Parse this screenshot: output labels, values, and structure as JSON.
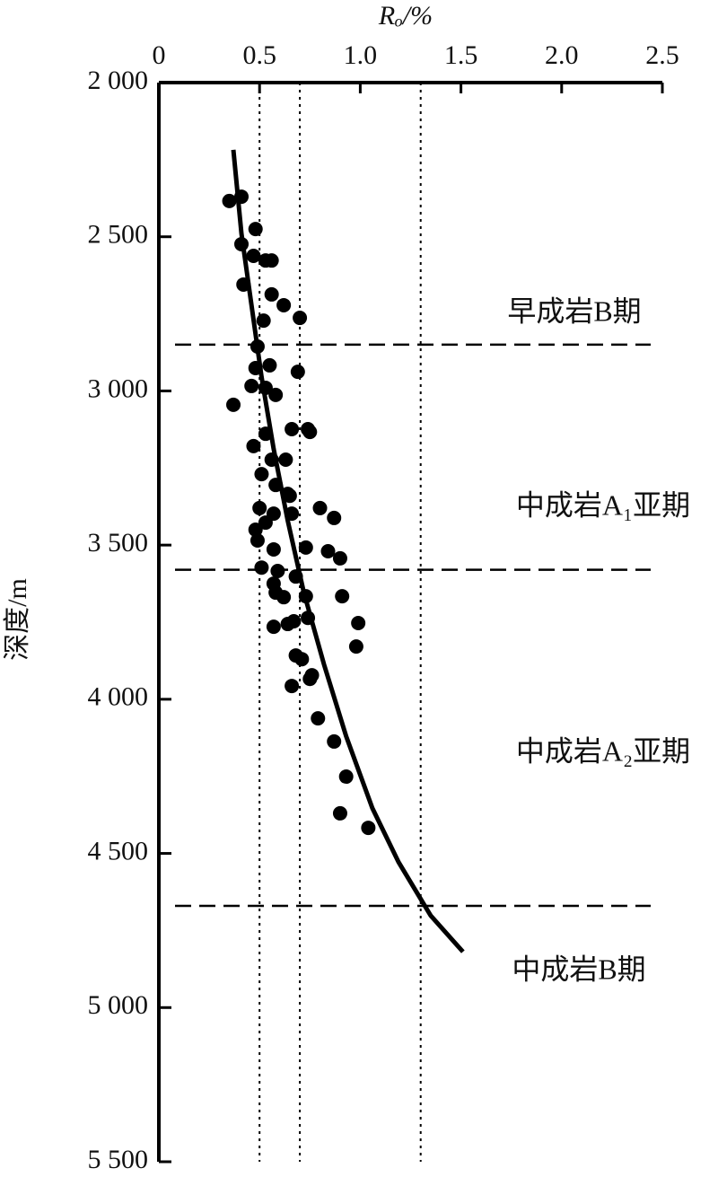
{
  "chart_data": {
    "type": "scatter",
    "x_label": "Rₒ/%",
    "y_label": "深度/m",
    "xlim": [
      0,
      2.5
    ],
    "xticks": [
      0,
      0.5,
      {
        "value": 1,
        "label": "1.0"
      },
      1.5,
      {
        "value": 2,
        "label": "2.0"
      },
      2.5
    ],
    "ylim": [
      2000,
      5500
    ],
    "yticks": [
      {
        "value": 2000,
        "label": "2 000"
      },
      {
        "value": 2500,
        "label": "2 500"
      },
      {
        "value": 3000,
        "label": "3 000"
      },
      {
        "value": 3500,
        "label": "3 500"
      },
      {
        "value": 4000,
        "label": "4 000"
      },
      {
        "value": 4500,
        "label": "4 500"
      },
      {
        "value": 5000,
        "label": "5 000"
      },
      {
        "value": 5500,
        "label": "5 500"
      }
    ],
    "y_inverted": true,
    "x_axis_position": "top",
    "color": "#000000",
    "points": {
      "x": [
        0.35,
        0.41,
        0.41,
        0.48,
        0.47,
        0.53,
        0.56,
        0.42,
        0.56,
        0.62,
        0.52,
        0.7,
        0.49,
        0.48,
        0.55,
        0.69,
        0.37,
        0.46,
        0.53,
        0.58,
        0.66,
        0.74,
        0.75,
        0.47,
        0.53,
        0.56,
        0.63,
        0.51,
        0.58,
        0.64,
        0.5,
        0.57,
        0.65,
        0.66,
        0.8,
        0.87,
        0.48,
        0.53,
        0.49,
        0.57,
        0.73,
        0.84,
        0.9,
        0.51,
        0.59,
        0.68,
        0.57,
        0.58,
        0.62,
        0.73,
        0.91,
        0.57,
        0.64,
        0.67,
        0.74,
        0.99,
        0.98,
        0.68,
        0.71,
        0.76,
        0.75,
        0.66,
        0.79,
        0.87,
        0.93,
        0.9,
        1.04
      ],
      "y": [
        2384,
        2370,
        2524,
        2475,
        2562,
        2577,
        2577,
        2655,
        2687,
        2722,
        2772,
        2763,
        2856,
        2926,
        2917,
        2938,
        3045,
        2984,
        2990,
        3013,
        3124,
        3124,
        3133,
        3179,
        3139,
        3223,
        3223,
        3270,
        3305,
        3334,
        3380,
        3398,
        3340,
        3398,
        3380,
        3412,
        3450,
        3427,
        3485,
        3514,
        3508,
        3520,
        3543,
        3573,
        3584,
        3602,
        3625,
        3654,
        3669,
        3666,
        3666,
        3765,
        3756,
        3747,
        3736,
        3753,
        3829,
        3858,
        3870,
        3922,
        3934,
        3957,
        4062,
        4137,
        4251,
        4370,
        4417
      ]
    },
    "trend": {
      "x": [
        0.37,
        0.41,
        0.46,
        0.51,
        0.57,
        0.64,
        0.72,
        0.82,
        0.93,
        1.06,
        1.19,
        1.35,
        1.51
      ],
      "y": [
        2218,
        2489,
        2722,
        2955,
        3188,
        3421,
        3654,
        3887,
        4120,
        4353,
        4528,
        4702,
        4819
      ]
    },
    "vlines": [
      0.5,
      0.7,
      1.3
    ],
    "hlines": [
      2850,
      3580,
      4670
    ],
    "annotations": [
      "早成岩B期",
      "中成岩A₁亚期",
      "中成岩A₂亚期",
      "中成岩B期"
    ]
  }
}
